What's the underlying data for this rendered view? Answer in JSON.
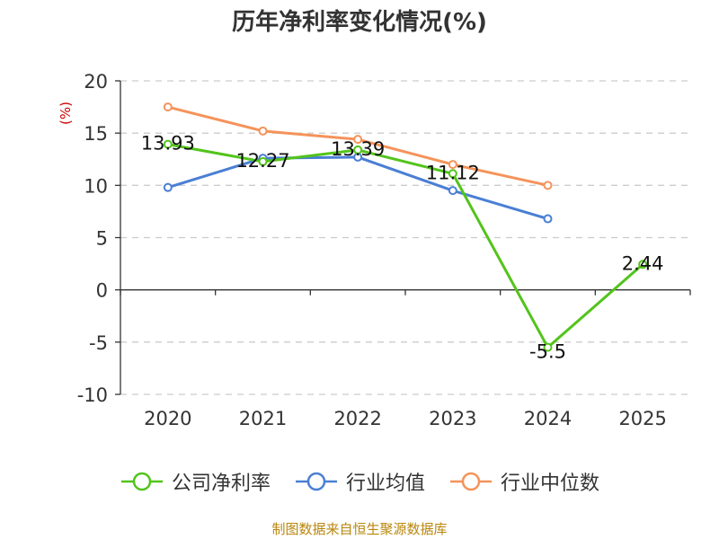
{
  "chart_data": {
    "type": "line",
    "title": "历年净利率变化情况(%)",
    "ylabel": "(%)",
    "xlabel": "",
    "categories": [
      "2020",
      "2021",
      "2022",
      "2023",
      "2024",
      "2025"
    ],
    "ylim": [
      -10,
      20
    ],
    "yticks": [
      -10,
      -5,
      0,
      5,
      10,
      15,
      20
    ],
    "grid": true,
    "legend_position": "bottom",
    "series": [
      {
        "name": "公司净利率",
        "color": "#52c41a",
        "values": [
          13.93,
          12.27,
          13.39,
          11.12,
          -5.5,
          2.44
        ],
        "labels": [
          "13.93",
          "12.27",
          "13.39",
          "11.12",
          "-5.5",
          "2.44"
        ]
      },
      {
        "name": "行业均值",
        "color": "#4a7fd4",
        "values": [
          9.8,
          12.6,
          12.7,
          9.5,
          6.8,
          null
        ]
      },
      {
        "name": "行业中位数",
        "color": "#f5935a",
        "values": [
          17.5,
          15.2,
          14.4,
          12.0,
          10.0,
          null
        ]
      }
    ]
  },
  "legend": {
    "items": [
      {
        "label": "公司净利率",
        "color": "#52c41a"
      },
      {
        "label": "行业均值",
        "color": "#4a7fd4"
      },
      {
        "label": "行业中位数",
        "color": "#f5935a"
      }
    ]
  },
  "source": "制图数据来自恒生聚源数据库"
}
